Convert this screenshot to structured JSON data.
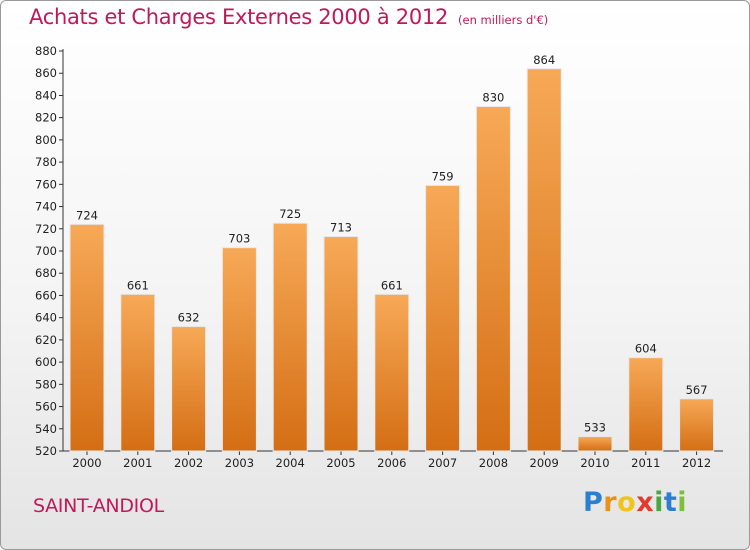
{
  "title": "Achats et Charges Externes 2000 à 2012",
  "subtitle": "(en milliers d'€)",
  "commune": "SAINT-ANDIOL",
  "logo": {
    "text": "Proxiti",
    "colors": [
      "#2b7fd0",
      "#e8921a",
      "#f0c419",
      "#e23b2e",
      "#47a83e",
      "#2b7fd0",
      "#7cbf3a"
    ]
  },
  "colors": {
    "title": "#c2185b",
    "bar_top": "#f7a957",
    "bar_bottom": "#d46e14"
  },
  "chart_data": {
    "type": "bar",
    "title": "Achats et Charges Externes 2000 à 2012",
    "categories": [
      "2000",
      "2001",
      "2002",
      "2003",
      "2004",
      "2005",
      "2006",
      "2007",
      "2008",
      "2009",
      "2010",
      "2011",
      "2012"
    ],
    "values": [
      724,
      661,
      632,
      703,
      725,
      713,
      661,
      759,
      830,
      864,
      533,
      604,
      567
    ],
    "ylim": [
      520,
      880
    ],
    "yticks": [
      520,
      540,
      560,
      580,
      600,
      620,
      640,
      660,
      680,
      700,
      720,
      740,
      760,
      780,
      800,
      820,
      840,
      860,
      880
    ],
    "grid": false,
    "xlabel": "",
    "ylabel": ""
  }
}
